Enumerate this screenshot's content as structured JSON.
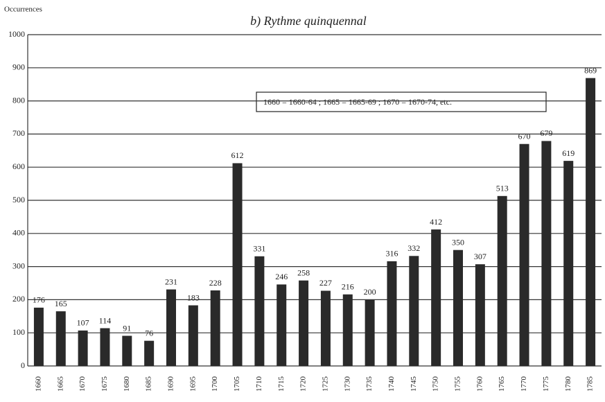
{
  "chart_data": {
    "type": "bar",
    "title": "b) Rythme quinquennal",
    "y_label": "Occurrences",
    "annotation": "1660 = 1660-64 ; 1665 = 1665-69 ; 1670 = 1670-74, etc.",
    "categories": [
      "1660",
      "1665",
      "1670",
      "1675",
      "1680",
      "1685",
      "1690",
      "1695",
      "1700",
      "1705",
      "1710",
      "1715",
      "1720",
      "1725",
      "1730",
      "1735",
      "1740",
      "1745",
      "1750",
      "1755",
      "1760",
      "1765",
      "1770",
      "1775",
      "1780",
      "1785"
    ],
    "values": [
      176,
      165,
      107,
      114,
      91,
      76,
      231,
      183,
      228,
      612,
      331,
      246,
      258,
      227,
      216,
      200,
      316,
      332,
      412,
      350,
      307,
      513,
      670,
      679,
      619,
      869
    ],
    "color": "#2a2a2a",
    "ylim": [
      0,
      1000
    ],
    "yticks": [
      0,
      100,
      200,
      300,
      400,
      500,
      600,
      700,
      800,
      900,
      1000
    ],
    "grid": true
  }
}
